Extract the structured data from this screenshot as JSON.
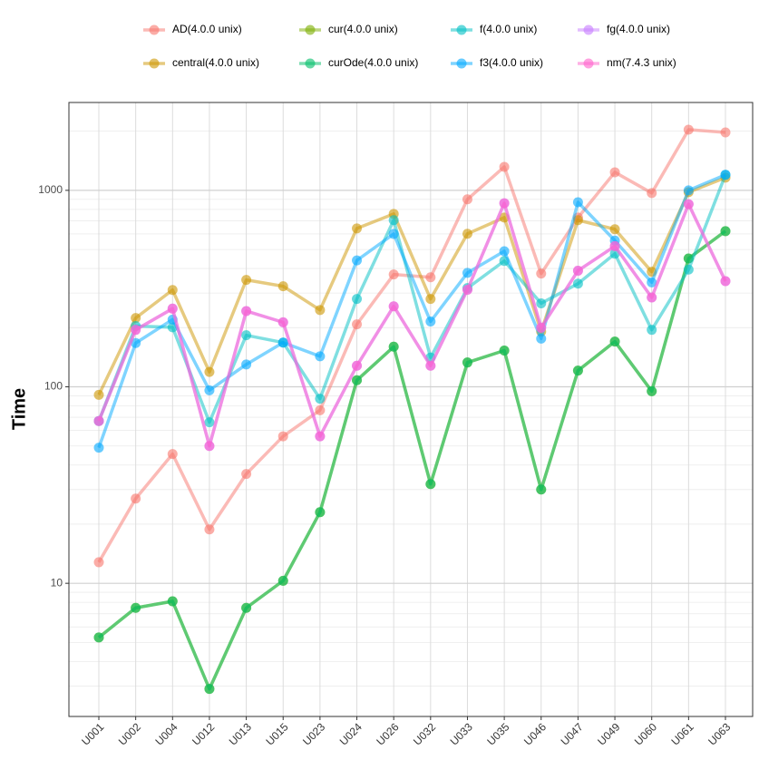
{
  "chart_data": {
    "type": "line",
    "ylabel": "Time",
    "log_y": true,
    "grid": true,
    "legend_position": "top",
    "categories": [
      "U001",
      "U002",
      "U004",
      "U012",
      "U013",
      "U015",
      "U023",
      "U024",
      "U026",
      "U032",
      "U033",
      "U035",
      "U046",
      "U047",
      "U049",
      "U060",
      "U061",
      "U063"
    ],
    "ylim": [
      2.1,
      2800
    ],
    "yticks": [
      10,
      100,
      1000
    ],
    "y_minor_ticks": [
      3,
      4,
      5,
      6,
      7,
      8,
      9,
      20,
      30,
      40,
      50,
      60,
      70,
      80,
      90,
      200,
      300,
      400,
      500,
      600,
      700,
      800,
      900,
      2000
    ],
    "series": [
      {
        "name": "AD(4.0.0 unix)",
        "color": "#F8766D",
        "values": [
          12.8,
          27,
          45.5,
          18.8,
          36,
          56,
          76,
          208,
          373,
          361,
          900,
          1317,
          377,
          727,
          1236,
          969,
          2036,
          1971
        ]
      },
      {
        "name": "central(4.0.0 unix)",
        "color": "#CD9600",
        "values": [
          91,
          224,
          311,
          119,
          350,
          325,
          246,
          640,
          759,
          280,
          601,
          727,
          191,
          705,
          634,
          385,
          979,
          1160
        ]
      },
      {
        "name": "cur(4.0.0 unix)",
        "color": "#7CAE00",
        "values": [
          5.3,
          7.5,
          8.1,
          2.9,
          7.5,
          10.3,
          23,
          108,
          160,
          32,
          133,
          153,
          30,
          121,
          170,
          95,
          450,
          620
        ]
      },
      {
        "name": "curOde(4.0.0 unix)",
        "color": "#00BE67",
        "values": [
          5.3,
          7.5,
          8.1,
          2.9,
          7.5,
          10.3,
          23,
          108,
          160,
          32,
          133,
          153,
          30,
          121,
          170,
          95,
          450,
          620
        ]
      },
      {
        "name": "f(4.0.0 unix)",
        "color": "#00BFC4",
        "values": [
          67,
          204,
          201,
          66,
          183,
          168,
          87,
          280,
          705,
          141,
          318,
          437,
          266,
          335,
          476,
          195,
          395,
          1200
        ]
      },
      {
        "name": "f3(4.0.0 unix)",
        "color": "#00A9FF",
        "values": [
          49,
          167,
          220,
          96,
          130,
          168,
          143,
          440,
          600,
          215,
          380,
          490,
          176,
          870,
          555,
          340,
          1000,
          1200
        ]
      },
      {
        "name": "fg(4.0.0 unix)",
        "color": "#C77CFF",
        "values": [
          67,
          195,
          250,
          50,
          243,
          213,
          56,
          128,
          257,
          128,
          312,
          860,
          200,
          390,
          520,
          285,
          850,
          345
        ]
      },
      {
        "name": "nm(7.4.3 unix)",
        "color": "#FF61CC",
        "values": [
          67,
          195,
          250,
          50,
          243,
          213,
          56,
          128,
          257,
          128,
          312,
          860,
          200,
          390,
          520,
          285,
          850,
          345
        ]
      }
    ]
  }
}
